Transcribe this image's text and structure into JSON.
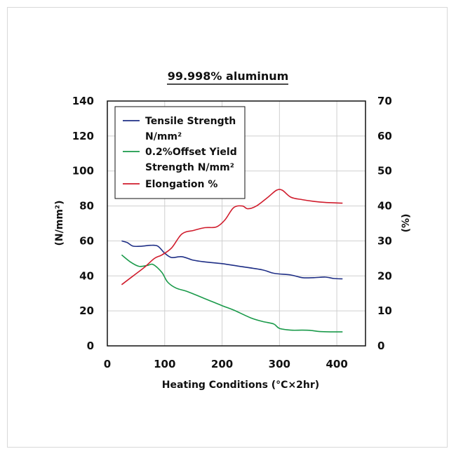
{
  "chart_data": {
    "type": "line",
    "title": "99.998% aluminum",
    "xlabel": "Heating Conditions (°C×2hr)",
    "ylabel_left": "(N/mm²)",
    "ylabel_right": "(%)",
    "xlim": [
      0,
      450
    ],
    "ylim_left": [
      0,
      140
    ],
    "ylim_right": [
      0,
      70
    ],
    "x_ticks": [
      "0",
      "100",
      "200",
      "300",
      "400"
    ],
    "y_left_ticks": [
      "0",
      "20",
      "40",
      "60",
      "80",
      "100",
      "120",
      "140"
    ],
    "y_right_ticks": [
      "0",
      "10",
      "20",
      "30",
      "40",
      "50",
      "60",
      "70"
    ],
    "grid": true,
    "legend_position": "top-left",
    "series": [
      {
        "name": "Tensile Strength N/mm²",
        "legend_lines": [
          "Tensile Strength",
          "N/mm²"
        ],
        "color": "#1f2f86",
        "axis": "left",
        "points": [
          [
            25,
            60
          ],
          [
            35,
            59
          ],
          [
            45,
            57
          ],
          [
            60,
            57
          ],
          [
            75,
            57.5
          ],
          [
            88,
            57
          ],
          [
            100,
            53
          ],
          [
            112,
            50.5
          ],
          [
            130,
            51
          ],
          [
            150,
            49
          ],
          [
            170,
            48
          ],
          [
            200,
            47
          ],
          [
            230,
            45.5
          ],
          [
            270,
            43.5
          ],
          [
            290,
            41.5
          ],
          [
            320,
            40.5
          ],
          [
            340,
            39
          ],
          [
            360,
            39
          ],
          [
            380,
            39.3
          ],
          [
            395,
            38.5
          ],
          [
            410,
            38.3
          ]
        ]
      },
      {
        "name": "0.2%Offset Yield Strength N/mm²",
        "legend_lines": [
          "0.2%Offset Yield",
          "Strength N/mm²"
        ],
        "color": "#1a9a4a",
        "axis": "left",
        "points": [
          [
            25,
            52
          ],
          [
            40,
            48
          ],
          [
            55,
            45.5
          ],
          [
            70,
            46
          ],
          [
            80,
            46.5
          ],
          [
            95,
            42
          ],
          [
            105,
            36.5
          ],
          [
            120,
            33
          ],
          [
            140,
            31
          ],
          [
            170,
            27
          ],
          [
            200,
            23
          ],
          [
            220,
            20.5
          ],
          [
            250,
            16
          ],
          [
            270,
            14
          ],
          [
            290,
            12.5
          ],
          [
            300,
            10
          ],
          [
            320,
            9
          ],
          [
            340,
            9
          ],
          [
            355,
            8.8
          ],
          [
            370,
            8.2
          ],
          [
            390,
            8
          ],
          [
            410,
            8
          ]
        ]
      },
      {
        "name": "Elongation %",
        "legend_lines": [
          "Elongation %"
        ],
        "color": "#d01c2c",
        "axis": "right",
        "points": [
          [
            25,
            17.5
          ],
          [
            45,
            20
          ],
          [
            65,
            22.5
          ],
          [
            82,
            25
          ],
          [
            95,
            26
          ],
          [
            112,
            28
          ],
          [
            130,
            32
          ],
          [
            150,
            33
          ],
          [
            170,
            33.8
          ],
          [
            190,
            34
          ],
          [
            205,
            36
          ],
          [
            220,
            39.5
          ],
          [
            235,
            40
          ],
          [
            245,
            39.2
          ],
          [
            260,
            40
          ],
          [
            280,
            42.5
          ],
          [
            295,
            44.5
          ],
          [
            305,
            44.5
          ],
          [
            320,
            42.5
          ],
          [
            340,
            41.8
          ],
          [
            360,
            41.3
          ],
          [
            380,
            41
          ],
          [
            410,
            40.8
          ]
        ]
      }
    ]
  }
}
